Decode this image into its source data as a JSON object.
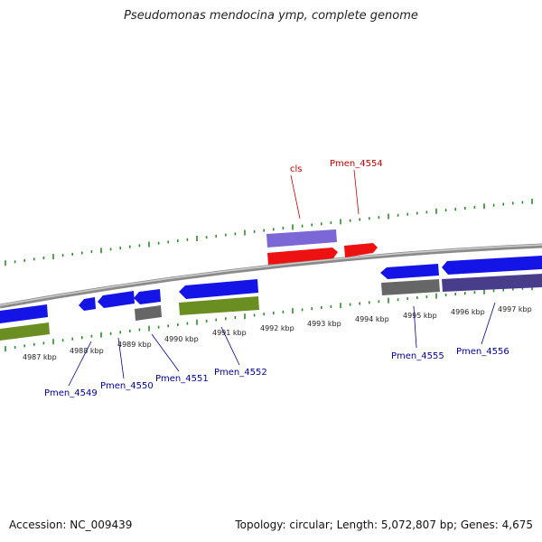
{
  "title": "Pseudomonas mendocina ymp, complete genome",
  "footer": {
    "accession": "Accession: NC_009439",
    "summary": "Topology: circular; Length: 5,072,807 bp; Genes: 4,675"
  },
  "colors": {
    "backbone": "#8a8a8a",
    "tick": "#2e8b2e",
    "forward_cds": "#1414e6",
    "reverse_rna": "#ee1111",
    "rna_shadow": "#7b68d6",
    "gray_feature": "#666666",
    "green_feature": "#6b8e23",
    "label_red": "#cc0000",
    "label_blue": "#00009c"
  },
  "tick_labels": [
    "4987 kbp",
    "4988 kbp",
    "4989 kbp",
    "4990 kbp",
    "4991 kbp",
    "4992 kbp",
    "4993 kbp",
    "4994 kbp",
    "4995 kbp",
    "4996 kbp",
    "4997 kbp"
  ],
  "gene_labels": {
    "cls": "cls",
    "pmen_4554": "Pmen_4554",
    "pmen_4549": "Pmen_4549",
    "pmen_4550": "Pmen_4550",
    "pmen_4551": "Pmen_4551",
    "pmen_4552": "Pmen_4552",
    "pmen_4555": "Pmen_4555",
    "pmen_4556": "Pmen_4556"
  }
}
